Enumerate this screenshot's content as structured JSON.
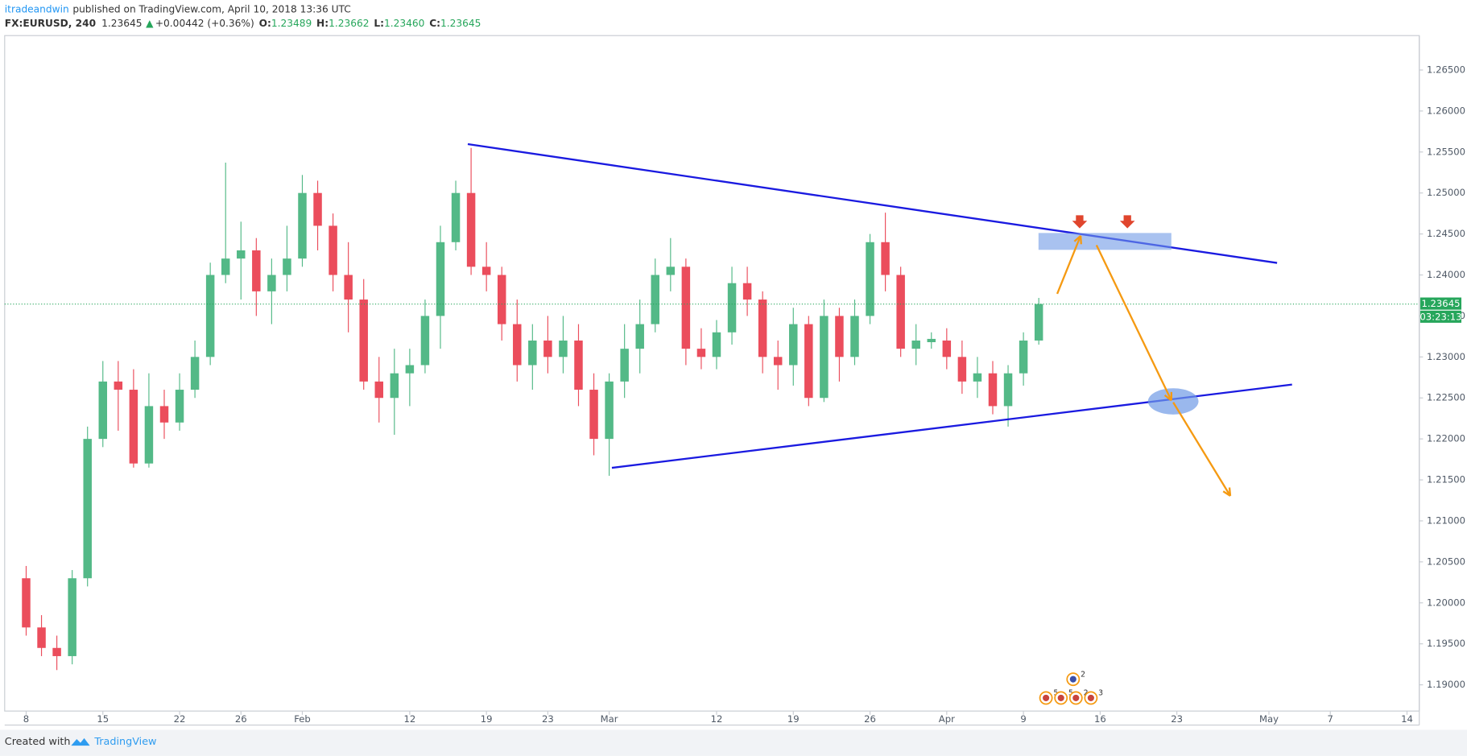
{
  "header": {
    "author": "itradeandwin",
    "published": "published on TradingView.com, April 10, 2018 13:36 UTC",
    "symbol": "FX:EURUSD, 240",
    "last": "1.23645",
    "arrow": "▲",
    "change": "+0.00442 (+0.36%)",
    "ohlc": [
      {
        "label": "O:",
        "value": "1.23489"
      },
      {
        "label": "H:",
        "value": "1.23662"
      },
      {
        "label": "L:",
        "value": "1.23460"
      },
      {
        "label": "C:",
        "value": "1.23645"
      }
    ]
  },
  "chart_data": {
    "type": "candlestick",
    "x": [
      0,
      1,
      2,
      3,
      4,
      5,
      6,
      7,
      8,
      9,
      10,
      11,
      12,
      13,
      14,
      15,
      16,
      17,
      18,
      19,
      20,
      21,
      22,
      23,
      24,
      25,
      26,
      27,
      28,
      29,
      30,
      31,
      32,
      33,
      34,
      35,
      36,
      37,
      38,
      39,
      40,
      41,
      42,
      43,
      44,
      45,
      46,
      47,
      48,
      49,
      50,
      51,
      52,
      53,
      54,
      55,
      56,
      57,
      58,
      59,
      60,
      61,
      62,
      63,
      64,
      65,
      66
    ],
    "open": [
      1.203,
      1.197,
      1.1945,
      1.1935,
      1.203,
      1.22,
      1.227,
      1.226,
      1.217,
      1.224,
      1.222,
      1.226,
      1.23,
      1.24,
      1.242,
      1.243,
      1.238,
      1.24,
      1.242,
      1.25,
      1.246,
      1.24,
      1.237,
      1.227,
      1.225,
      1.228,
      1.229,
      1.235,
      1.244,
      1.25,
      1.241,
      1.24,
      1.234,
      1.229,
      1.232,
      1.23,
      1.232,
      1.226,
      1.22,
      1.227,
      1.231,
      1.234,
      1.24,
      1.241,
      1.231,
      1.23,
      1.233,
      1.239,
      1.237,
      1.23,
      1.229,
      1.234,
      1.225,
      1.235,
      1.23,
      1.235,
      1.244,
      1.24,
      1.231,
      1.2318,
      1.232,
      1.23,
      1.227,
      1.228,
      1.224,
      1.228,
      1.232
    ],
    "high": [
      1.2045,
      1.1985,
      1.196,
      1.204,
      1.2215,
      1.2295,
      1.2295,
      1.2285,
      1.228,
      1.226,
      1.228,
      1.232,
      1.2415,
      1.2537,
      1.2465,
      1.2445,
      1.242,
      1.246,
      1.2522,
      1.2515,
      1.2475,
      1.244,
      1.2395,
      1.23,
      1.231,
      1.231,
      1.237,
      1.246,
      1.2515,
      1.2555,
      1.244,
      1.241,
      1.237,
      1.234,
      1.235,
      1.235,
      1.234,
      1.228,
      1.228,
      1.234,
      1.237,
      1.242,
      1.2445,
      1.242,
      1.2335,
      1.2345,
      1.241,
      1.241,
      1.238,
      1.232,
      1.236,
      1.235,
      1.237,
      1.236,
      1.237,
      1.245,
      1.2476,
      1.241,
      1.234,
      1.233,
      1.2335,
      1.232,
      1.23,
      1.2295,
      1.229,
      1.233,
      1.2372
    ],
    "low": [
      1.196,
      1.1935,
      1.1918,
      1.1925,
      1.202,
      1.219,
      1.221,
      1.2165,
      1.2165,
      1.22,
      1.221,
      1.225,
      1.229,
      1.239,
      1.237,
      1.235,
      1.234,
      1.238,
      1.241,
      1.243,
      1.238,
      1.233,
      1.226,
      1.222,
      1.2205,
      1.224,
      1.228,
      1.231,
      1.243,
      1.24,
      1.238,
      1.232,
      1.227,
      1.226,
      1.228,
      1.228,
      1.224,
      1.218,
      1.2155,
      1.225,
      1.228,
      1.233,
      1.238,
      1.229,
      1.2285,
      1.2285,
      1.2315,
      1.235,
      1.228,
      1.226,
      1.2265,
      1.224,
      1.2245,
      1.227,
      1.229,
      1.234,
      1.238,
      1.23,
      1.229,
      1.231,
      1.2285,
      1.2255,
      1.225,
      1.223,
      1.2215,
      1.2265,
      1.2315
    ],
    "close": [
      1.197,
      1.1945,
      1.1935,
      1.203,
      1.22,
      1.227,
      1.226,
      1.217,
      1.224,
      1.222,
      1.226,
      1.23,
      1.24,
      1.242,
      1.243,
      1.238,
      1.24,
      1.242,
      1.25,
      1.246,
      1.24,
      1.237,
      1.227,
      1.225,
      1.228,
      1.229,
      1.235,
      1.244,
      1.25,
      1.241,
      1.24,
      1.234,
      1.229,
      1.232,
      1.23,
      1.232,
      1.226,
      1.22,
      1.227,
      1.231,
      1.234,
      1.24,
      1.241,
      1.231,
      1.23,
      1.233,
      1.239,
      1.237,
      1.23,
      1.229,
      1.234,
      1.225,
      1.235,
      1.23,
      1.235,
      1.244,
      1.24,
      1.231,
      1.232,
      1.2322,
      1.23,
      1.227,
      1.228,
      1.224,
      1.228,
      1.232,
      1.23645
    ],
    "up_color": "#53b987",
    "down_color": "#eb4d5c",
    "xlim": [
      -0.9,
      91.3
    ],
    "xticks": [
      {
        "value": 0,
        "label": "8"
      },
      {
        "value": 5,
        "label": "15"
      },
      {
        "value": 10,
        "label": "22"
      },
      {
        "value": 14,
        "label": "26"
      },
      {
        "value": 18,
        "label": "Feb"
      },
      {
        "value": 25,
        "label": "12"
      },
      {
        "value": 30,
        "label": "19"
      },
      {
        "value": 34,
        "label": "23"
      },
      {
        "value": 38,
        "label": "Mar"
      },
      {
        "value": 45,
        "label": "12"
      },
      {
        "value": 50,
        "label": "19"
      },
      {
        "value": 55,
        "label": "26"
      },
      {
        "value": 60,
        "label": "Apr"
      },
      {
        "value": 65,
        "label": "9"
      },
      {
        "value": 70,
        "label": "16"
      },
      {
        "value": 75,
        "label": "23"
      },
      {
        "value": 81,
        "label": "May"
      },
      {
        "value": 85,
        "label": "7"
      },
      {
        "value": 90,
        "label": "14"
      }
    ],
    "ylim": [
      1.1868,
      1.2692
    ],
    "yticks": [
      {
        "value": 1.19,
        "label": "1.19000"
      },
      {
        "value": 1.195,
        "label": "1.19500"
      },
      {
        "value": 1.2,
        "label": "1.20000"
      },
      {
        "value": 1.205,
        "label": "1.20500"
      },
      {
        "value": 1.21,
        "label": "1.21000"
      },
      {
        "value": 1.215,
        "label": "1.21500"
      },
      {
        "value": 1.22,
        "label": "1.22000"
      },
      {
        "value": 1.225,
        "label": "1.22500"
      },
      {
        "value": 1.23,
        "label": "1.23000"
      },
      {
        "value": 1.235,
        "label": "1.23500"
      },
      {
        "value": 1.24,
        "label": "1.24000"
      },
      {
        "value": 1.245,
        "label": "1.24500"
      },
      {
        "value": 1.25,
        "label": "1.25000"
      },
      {
        "value": 1.255,
        "label": "1.25500"
      },
      {
        "value": 1.26,
        "label": "1.26000"
      },
      {
        "value": 1.265,
        "label": "1.26500"
      }
    ],
    "grid": false,
    "last_price": 1.23645,
    "countdown": "03:23:13",
    "event_counts": [
      "2",
      "5",
      "5",
      "2",
      "3"
    ]
  },
  "footer": {
    "created_with": "Created with",
    "brand": "TradingView"
  }
}
